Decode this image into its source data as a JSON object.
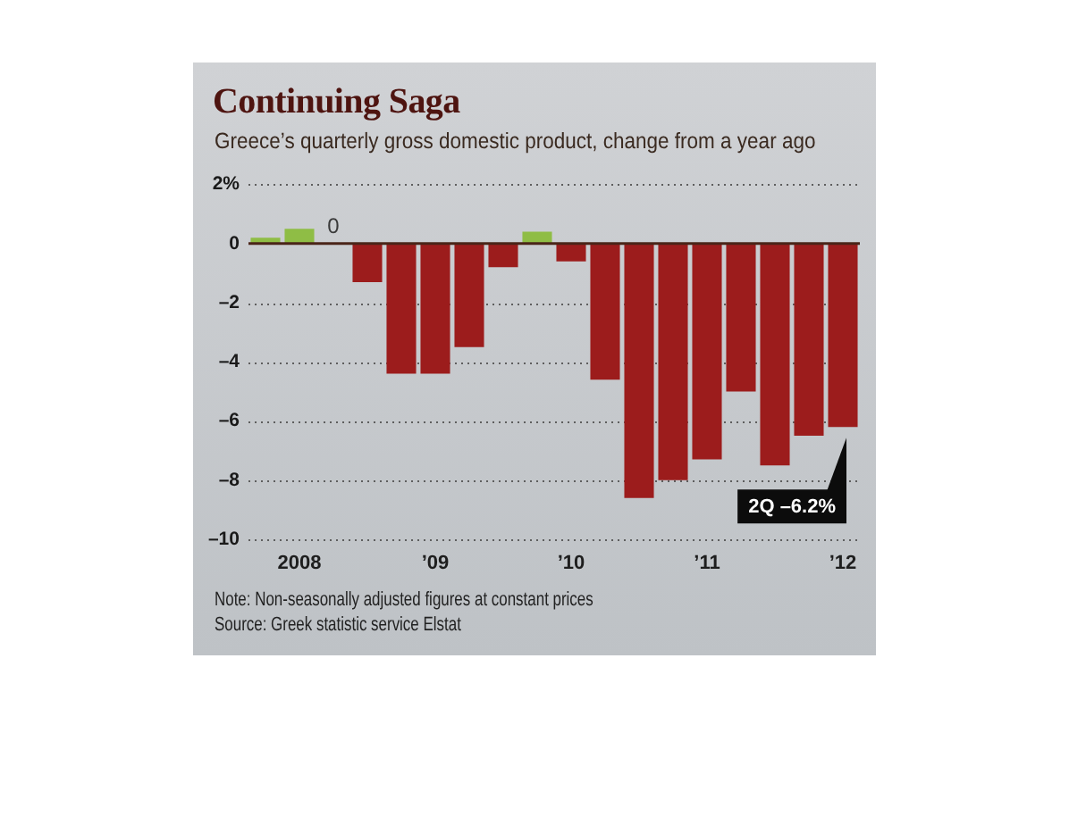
{
  "chart_data": {
    "type": "bar",
    "title": "Continuing Saga",
    "subtitle": "Greece’s quarterly gross domestic product, change from a year ago",
    "categories": [
      null,
      "2008",
      null,
      null,
      null,
      "’09",
      null,
      null,
      null,
      "’10",
      null,
      null,
      null,
      "’11",
      null,
      null,
      null,
      "’12"
    ],
    "values": [
      0.2,
      0.5,
      0,
      -1.3,
      -4.4,
      -4.4,
      -3.5,
      -0.8,
      0.4,
      -0.6,
      -4.6,
      -8.6,
      -8.0,
      -7.3,
      -5.0,
      -7.5,
      -6.5,
      -6.2
    ],
    "colors": [
      "#8fbd45",
      "#8fbd45",
      "#9c1c1c",
      "#9c1c1c",
      "#9c1c1c",
      "#9c1c1c",
      "#9c1c1c",
      "#9c1c1c",
      "#8fbd45",
      "#9c1c1c",
      "#9c1c1c",
      "#9c1c1c",
      "#9c1c1c",
      "#9c1c1c",
      "#9c1c1c",
      "#9c1c1c",
      "#9c1c1c",
      "#9c1c1c"
    ],
    "value_labels": [
      null,
      null,
      "0",
      null,
      null,
      null,
      null,
      null,
      null,
      null,
      null,
      null,
      null,
      null,
      null,
      null,
      null,
      "2Q –6.2%"
    ],
    "ylim": [
      -10,
      2
    ],
    "yticks": [
      {
        "value": 2,
        "label": "2%"
      },
      0,
      {
        "value": -2,
        "label": "–2"
      },
      {
        "value": -4,
        "label": "–4"
      },
      {
        "value": -6,
        "label": "–6"
      },
      {
        "value": -8,
        "label": "–8"
      },
      {
        "value": -10,
        "label": "–10"
      }
    ],
    "grid": "y",
    "annotations": [
      "Note: Non-seasonally adjusted figures at constant prices",
      "Source: Greek statistic service Elstat"
    ]
  }
}
